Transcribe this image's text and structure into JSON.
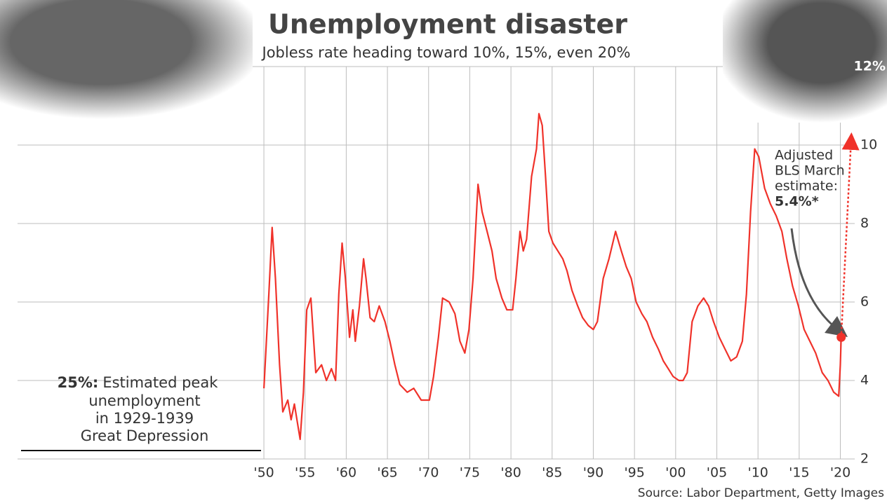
{
  "chart_data": {
    "type": "line",
    "title": "Unemployment disaster",
    "subtitle": "Jobless rate heading toward 10%, 15%, even 20%",
    "source": "Source: Labor Department, Getty Images",
    "xlim": [
      1920,
      2022
    ],
    "ylim": [
      2,
      12
    ],
    "xticks": [
      {
        "value": 1950,
        "label": "'50"
      },
      {
        "value": 1955,
        "label": "'55"
      },
      {
        "value": 1960,
        "label": "'60"
      },
      {
        "value": 1965,
        "label": "'65"
      },
      {
        "value": 1970,
        "label": "'70"
      },
      {
        "value": 1975,
        "label": "'75"
      },
      {
        "value": 1980,
        "label": "'80"
      },
      {
        "value": 1985,
        "label": "'85"
      },
      {
        "value": 1990,
        "label": "'90"
      },
      {
        "value": 1995,
        "label": "'95"
      },
      {
        "value": 2000,
        "label": "'00"
      },
      {
        "value": 2005,
        "label": "'05"
      },
      {
        "value": 2010,
        "label": "'10"
      },
      {
        "value": 2015,
        "label": "'15"
      },
      {
        "value": 2020,
        "label": "'20"
      }
    ],
    "yticks": [
      2,
      4,
      6,
      8,
      10,
      {
        "value": 12,
        "label": "12%"
      }
    ],
    "grid": true,
    "series": [
      {
        "color": "#f0322a",
        "x": [
          1950.0,
          1950.6,
          1951.0,
          1951.4,
          1951.9,
          1952.3,
          1952.9,
          1953.3,
          1953.7,
          1954.4,
          1954.8,
          1955.2,
          1955.7,
          1956.3,
          1957.0,
          1957.6,
          1958.2,
          1958.7,
          1959.1,
          1959.5,
          1959.9,
          1960.4,
          1960.8,
          1961.1,
          1961.6,
          1962.1,
          1962.4,
          1962.9,
          1963.4,
          1964.0,
          1964.7,
          1965.3,
          1965.9,
          1966.5,
          1967.4,
          1968.2,
          1969.1,
          1970.1,
          1970.6,
          1971.2,
          1971.7,
          1972.5,
          1973.2,
          1973.8,
          1974.4,
          1974.9,
          1975.4,
          1976.0,
          1976.5,
          1977.1,
          1977.7,
          1978.2,
          1978.9,
          1979.5,
          1980.2,
          1980.6,
          1981.1,
          1981.5,
          1981.9,
          1982.5,
          1983.1,
          1983.4,
          1983.8,
          1984.2,
          1984.6,
          1985.1,
          1985.7,
          1986.3,
          1986.8,
          1987.4,
          1988.1,
          1988.7,
          1989.4,
          1990.0,
          1990.5,
          1991.2,
          1991.9,
          1992.7,
          1993.4,
          1994.0,
          1994.6,
          1995.2,
          1995.9,
          1996.5,
          1997.2,
          1997.9,
          1998.5,
          1999.1,
          1999.7,
          2000.4,
          2000.9,
          2001.4,
          2002.0,
          2002.7,
          2003.4,
          2004.0,
          2004.6,
          2005.3,
          2006.0,
          2006.7,
          2007.4,
          2008.1,
          2008.6,
          2009.1,
          2009.6,
          2010.1,
          2010.8,
          2011.5,
          2012.2,
          2012.9,
          2013.5,
          2014.2,
          2014.9,
          2015.6,
          2016.3,
          2017.0,
          2017.8,
          2018.5,
          2019.2,
          2019.8,
          2020.0,
          2020.1
        ],
        "values": [
          3.8,
          6.2,
          7.9,
          6.6,
          4.4,
          3.2,
          3.5,
          3.0,
          3.4,
          2.5,
          3.7,
          5.8,
          6.1,
          4.2,
          4.4,
          4.0,
          4.3,
          4.0,
          6.2,
          7.5,
          6.6,
          5.1,
          5.8,
          5.0,
          5.9,
          7.1,
          6.6,
          5.6,
          5.5,
          5.9,
          5.5,
          5.0,
          4.4,
          3.9,
          3.7,
          3.8,
          3.5,
          3.5,
          4.1,
          5.1,
          6.1,
          6.0,
          5.7,
          5.0,
          4.7,
          5.3,
          6.6,
          9.0,
          8.3,
          7.8,
          7.3,
          6.6,
          6.1,
          5.8,
          5.8,
          6.6,
          7.8,
          7.3,
          7.6,
          9.2,
          9.9,
          10.8,
          10.5,
          9.2,
          7.8,
          7.5,
          7.3,
          7.1,
          6.8,
          6.3,
          5.9,
          5.6,
          5.4,
          5.3,
          5.5,
          6.6,
          7.1,
          7.8,
          7.3,
          6.9,
          6.6,
          6.0,
          5.7,
          5.5,
          5.1,
          4.8,
          4.5,
          4.3,
          4.1,
          4.0,
          4.0,
          4.2,
          5.5,
          5.9,
          6.1,
          5.9,
          5.5,
          5.1,
          4.8,
          4.5,
          4.6,
          5.0,
          6.2,
          8.3,
          9.9,
          9.7,
          8.9,
          8.5,
          8.2,
          7.8,
          7.1,
          6.4,
          5.9,
          5.3,
          5.0,
          4.7,
          4.2,
          4.0,
          3.7,
          3.6,
          4.4,
          5.1
        ]
      }
    ],
    "projection": {
      "x": [
        2020.1,
        2021.3
      ],
      "values": [
        5.1,
        10.1
      ]
    },
    "annotations": {
      "estimate": {
        "lines": [
          "Adjusted",
          "BLS March",
          "estimate:"
        ],
        "highlight": "5.4%*"
      },
      "depression": {
        "highlight": "25%:",
        "lines": [
          "Estimated peak",
          "unemployment",
          "in 1929-1939",
          "Great Depression"
        ]
      }
    }
  }
}
